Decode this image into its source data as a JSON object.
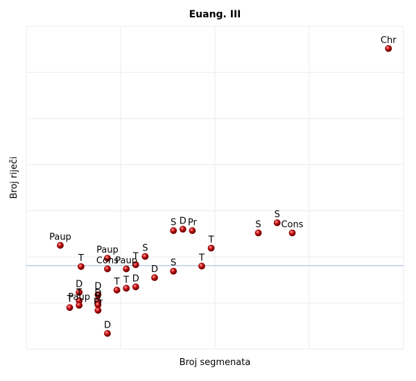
{
  "chart_data": {
    "type": "scatter",
    "title": "Euang. III",
    "xlabel": "Broj segmenata",
    "ylabel": "Broj riječi",
    "xlim": [
      0,
      20
    ],
    "ylim": [
      0,
      70
    ],
    "grid": true,
    "grid_x": [
      0,
      5,
      10,
      15,
      20
    ],
    "grid_y": [
      0,
      10,
      20,
      30,
      40,
      50,
      60,
      70
    ],
    "hline": 18.1,
    "colors": {
      "point": "#cc1111",
      "hline": "#9db8dc",
      "grid": "#ebebeb"
    },
    "points": [
      {
        "label": "Chr",
        "x": 19.2,
        "y": 65.2
      },
      {
        "label": "Paup",
        "x": 1.8,
        "y": 22.5
      },
      {
        "label": "T",
        "x": 2.9,
        "y": 17.9
      },
      {
        "label": "Paup",
        "x": 4.3,
        "y": 19.7
      },
      {
        "label": "S",
        "x": 6.3,
        "y": 20.1
      },
      {
        "label": "T",
        "x": 5.8,
        "y": 18.3
      },
      {
        "label": "Paup",
        "x": 5.3,
        "y": 17.4
      },
      {
        "label": "Cons",
        "x": 4.3,
        "y": 17.4
      },
      {
        "label": "S",
        "x": 7.8,
        "y": 25.7
      },
      {
        "label": "D",
        "x": 8.3,
        "y": 26.0
      },
      {
        "label": "Pr",
        "x": 8.8,
        "y": 25.7
      },
      {
        "label": "T",
        "x": 9.8,
        "y": 21.9
      },
      {
        "label": "T",
        "x": 9.3,
        "y": 18.0
      },
      {
        "label": "S",
        "x": 7.8,
        "y": 16.9
      },
      {
        "label": "D",
        "x": 6.8,
        "y": 15.5
      },
      {
        "label": "D",
        "x": 5.8,
        "y": 13.5
      },
      {
        "label": "T",
        "x": 5.3,
        "y": 13.2
      },
      {
        "label": "T",
        "x": 4.8,
        "y": 12.8
      },
      {
        "label": "S",
        "x": 12.3,
        "y": 25.2
      },
      {
        "label": "S",
        "x": 13.3,
        "y": 27.4
      },
      {
        "label": "Cons",
        "x": 14.1,
        "y": 25.2
      },
      {
        "label": "D",
        "x": 2.8,
        "y": 12.3
      },
      {
        "label": "D",
        "x": 3.8,
        "y": 11.8
      },
      {
        "label": "T",
        "x": 2.8,
        "y": 10.5
      },
      {
        "label": "T",
        "x": 2.3,
        "y": 9.0
      },
      {
        "label": "Paup",
        "x": 2.8,
        "y": 9.5
      },
      {
        "label": "D",
        "x": 3.8,
        "y": 10.3
      },
      {
        "label": "S",
        "x": 3.8,
        "y": 9.6
      },
      {
        "label": "Pr",
        "x": 3.8,
        "y": 8.4
      },
      {
        "label": "D",
        "x": 4.3,
        "y": 3.4
      }
    ]
  }
}
